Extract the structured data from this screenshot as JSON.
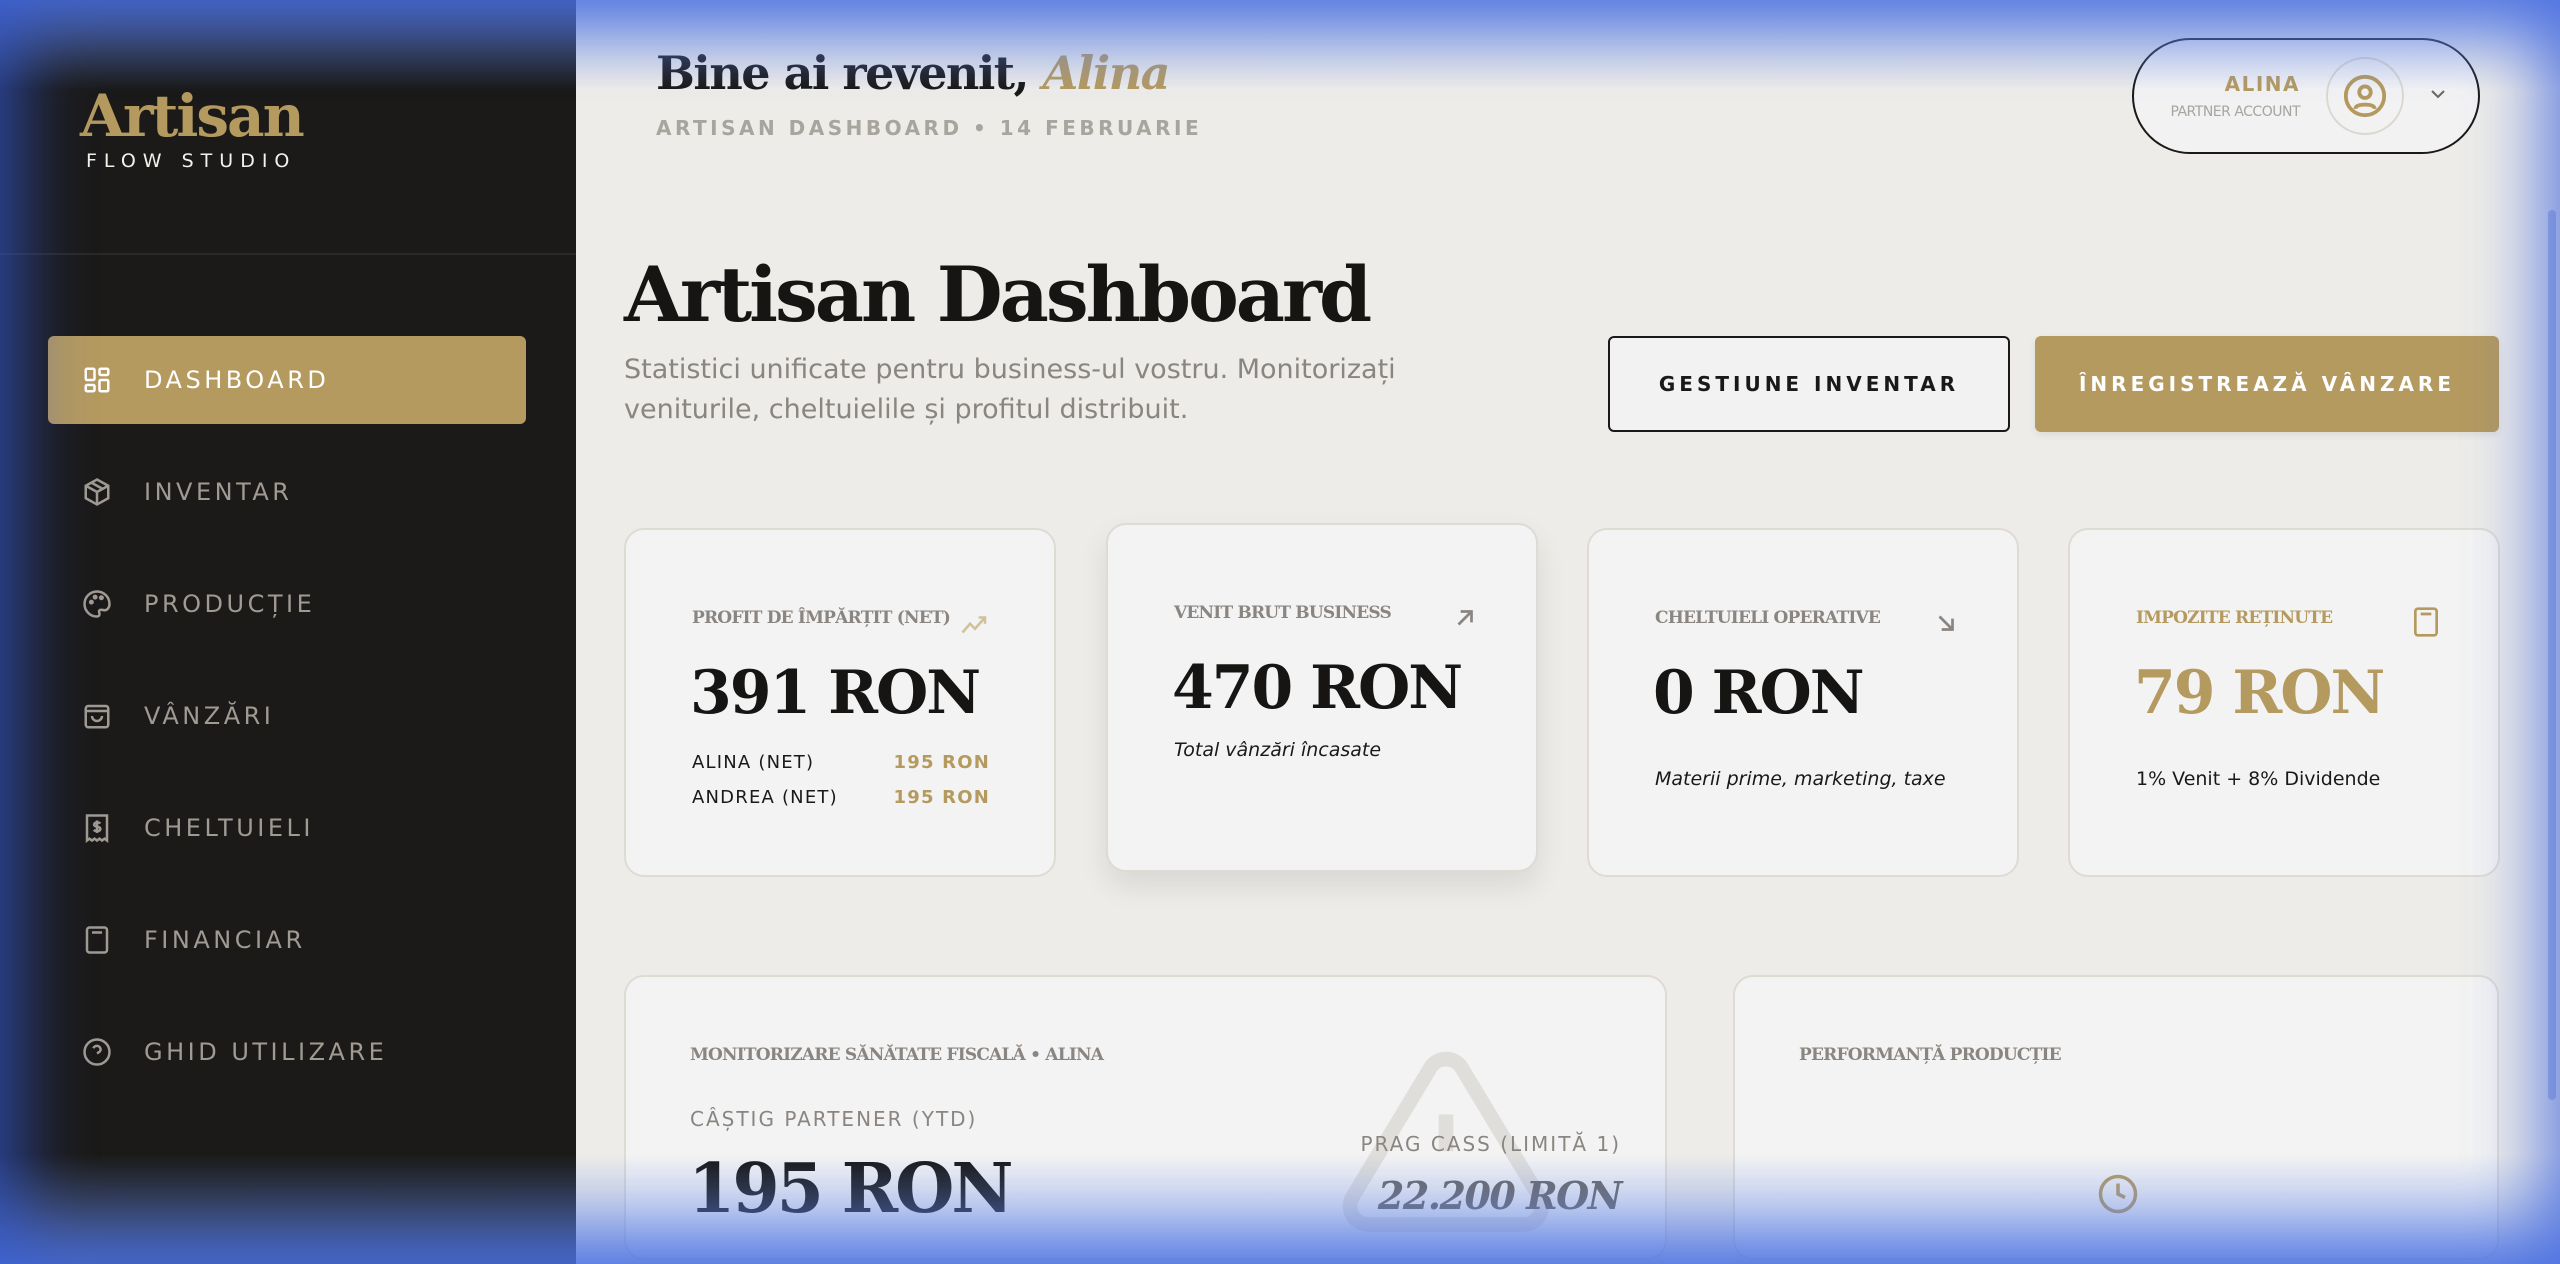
{
  "brand": {
    "name": "Artisan",
    "subtitle": "FLOW STUDIO"
  },
  "sidebar": {
    "items": [
      {
        "label": "DASHBOARD",
        "icon": "grid-icon",
        "active": true
      },
      {
        "label": "INVENTAR",
        "icon": "box-icon"
      },
      {
        "label": "PRODUCȚIE",
        "icon": "palette-icon"
      },
      {
        "label": "VÂNZĂRI",
        "icon": "shopping-bag-icon"
      },
      {
        "label": "CHELTUIELI",
        "icon": "receipt-icon"
      },
      {
        "label": "FINANCIAR",
        "icon": "calculator-icon"
      },
      {
        "label": "GHID UTILIZARE",
        "icon": "help-circle-icon"
      }
    ]
  },
  "header": {
    "greeting": "Bine ai revenit,",
    "user_name": "Alina",
    "subtitle": "ARTISAN DASHBOARD • 14 FEBRUARIE"
  },
  "user_menu": {
    "name": "ALINA",
    "role": "PARTNER ACCOUNT"
  },
  "page": {
    "title": "Artisan Dashboard",
    "description": "Statistici unificate pentru business-ul vostru. Monitorizați veniturile, cheltuielile și profitul distribuit."
  },
  "actions": {
    "inventory": "GESTIUNE INVENTAR",
    "record_sale": "ÎNREGISTREAZĂ VÂNZARE"
  },
  "stats": [
    {
      "label": "PROFIT DE ÎMPĂRȚIT (NET)",
      "value": "391 RON",
      "icon": "trending-up-icon",
      "rows": [
        {
          "name": "ALINA (NET)",
          "value": "195 RON"
        },
        {
          "name": "ANDREA (NET)",
          "value": "195 RON"
        }
      ]
    },
    {
      "label": "VENIT BRUT BUSINESS",
      "value": "470 RON",
      "icon": "arrow-up-right-icon",
      "note": "Total vânzări încasate"
    },
    {
      "label": "CHELTUIELI OPERATIVE",
      "value": "0 RON",
      "icon": "arrow-down-right-icon",
      "note": "Materii prime, marketing, taxe"
    },
    {
      "label": "IMPOZITE REȚINUTE",
      "value": "79 RON",
      "icon": "calculator-icon",
      "note": "1% Venit + 8% Dividende"
    }
  ],
  "fiscal": {
    "label": "MONITORIZARE SĂNĂTATE FISCALĂ • ALINA",
    "earn_label": "CÂȘTIG PARTENER (YTD)",
    "earn_value": "195 RON",
    "limit_label": "PRAG CASS (LIMITĂ 1)",
    "limit_value": "22.200 RON"
  },
  "production": {
    "label": "PERFORMANȚĂ PRODUCȚIE"
  },
  "colors": {
    "accent": "#b59a5f",
    "sidebar": "#1b1a19",
    "background": "#edece9"
  }
}
